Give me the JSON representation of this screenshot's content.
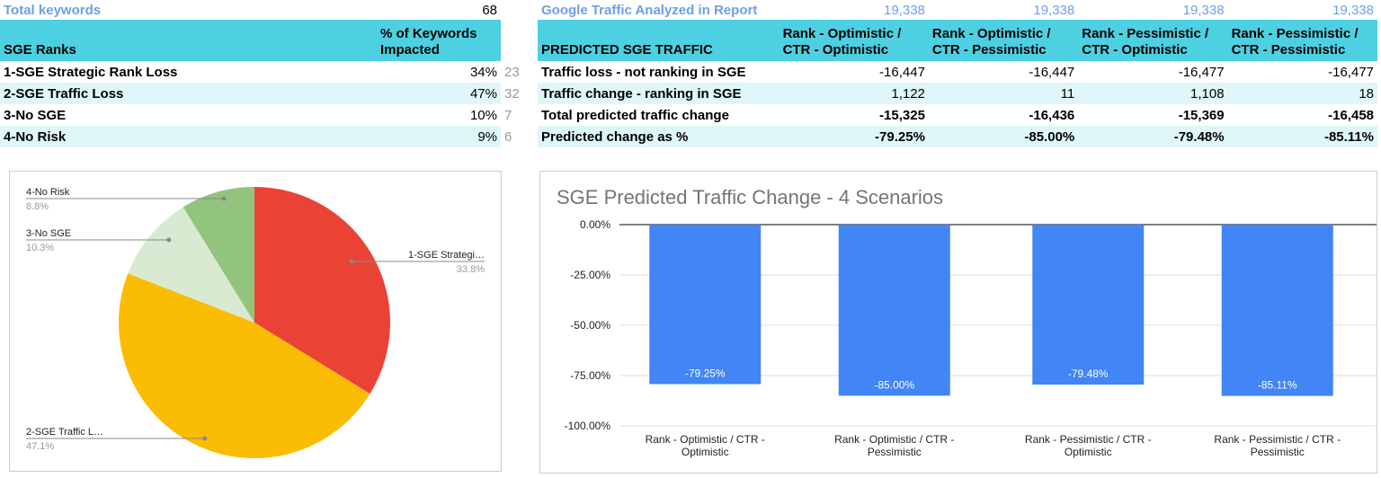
{
  "left_table": {
    "total_label": "Total keywords",
    "total_value": "68",
    "header": [
      "SGE Ranks",
      "% of Keywords Impacted"
    ],
    "rows": [
      {
        "label": "1-SGE Strategic Rank Loss",
        "pct": "34%",
        "count": "23"
      },
      {
        "label": "2-SGE Traffic Loss",
        "pct": "47%",
        "count": "32"
      },
      {
        "label": "3-No SGE",
        "pct": "10%",
        "count": "7"
      },
      {
        "label": "4-No Risk",
        "pct": "9%",
        "count": "6"
      }
    ]
  },
  "right_table": {
    "traffic_label": "Google Traffic Analyzed in Report",
    "traffic_values": [
      "19,338",
      "19,338",
      "19,338",
      "19,338"
    ],
    "header": [
      "PREDICTED SGE TRAFFIC",
      "Rank - Optimistic / CTR - Optimistic",
      "Rank - Optimistic / CTR - Pessimistic",
      "Rank - Pessimistic / CTR - Optimistic",
      "Rank - Pessimistic / CTR - Pessimistic"
    ],
    "rows": [
      {
        "label": "Traffic loss - not ranking in SGE",
        "values": [
          "-16,447",
          "-16,447",
          "-16,477",
          "-16,477"
        ],
        "bold": false
      },
      {
        "label": "Traffic change - ranking in SGE",
        "values": [
          "1,122",
          "11",
          "1,108",
          "18"
        ],
        "bold": false
      },
      {
        "label": "Total predicted traffic change",
        "values": [
          "-15,325",
          "-16,436",
          "-15,369",
          "-16,458"
        ],
        "bold": true
      },
      {
        "label": "Predicted change as %",
        "values": [
          "-79.25%",
          "-85.00%",
          "-79.48%",
          "-85.11%"
        ],
        "bold": true
      }
    ]
  },
  "chart_data": [
    {
      "type": "pie",
      "title": "",
      "slices": [
        {
          "label": "1-SGE Strategi…",
          "value": 33.8,
          "display": "33.8%",
          "color": "#ea4335"
        },
        {
          "label": "2-SGE Traffic L…",
          "value": 47.1,
          "display": "47.1%",
          "color": "#fbbc04"
        },
        {
          "label": "3-No SGE",
          "value": 10.3,
          "display": "10.3%",
          "color": "#d9ead3"
        },
        {
          "label": "4-No Risk",
          "value": 8.8,
          "display": "8.8%",
          "color": "#93c47d"
        }
      ]
    },
    {
      "type": "bar",
      "title": "SGE Predicted Traffic Change - 4 Scenarios",
      "categories": [
        [
          "Rank - Optimistic / CTR -",
          "Optimistic"
        ],
        [
          "Rank - Optimistic / CTR -",
          "Pessimistic"
        ],
        [
          "Rank - Pessimistic / CTR -",
          "Optimistic"
        ],
        [
          "Rank - Pessimistic / CTR -",
          "Pessimistic"
        ]
      ],
      "values": [
        -79.25,
        -85.0,
        -79.48,
        -85.11
      ],
      "data_labels": [
        "-79.25%",
        "-85.00%",
        "-79.48%",
        "-85.11%"
      ],
      "ylim": [
        -100,
        0
      ],
      "yticks": [
        0,
        -25,
        -50,
        -75,
        -100
      ],
      "ytick_labels": [
        "0.00%",
        "-25.00%",
        "-50.00%",
        "-75.00%",
        "-100.00%"
      ],
      "grid": true,
      "legend": "none",
      "color": "#4285f4"
    }
  ]
}
